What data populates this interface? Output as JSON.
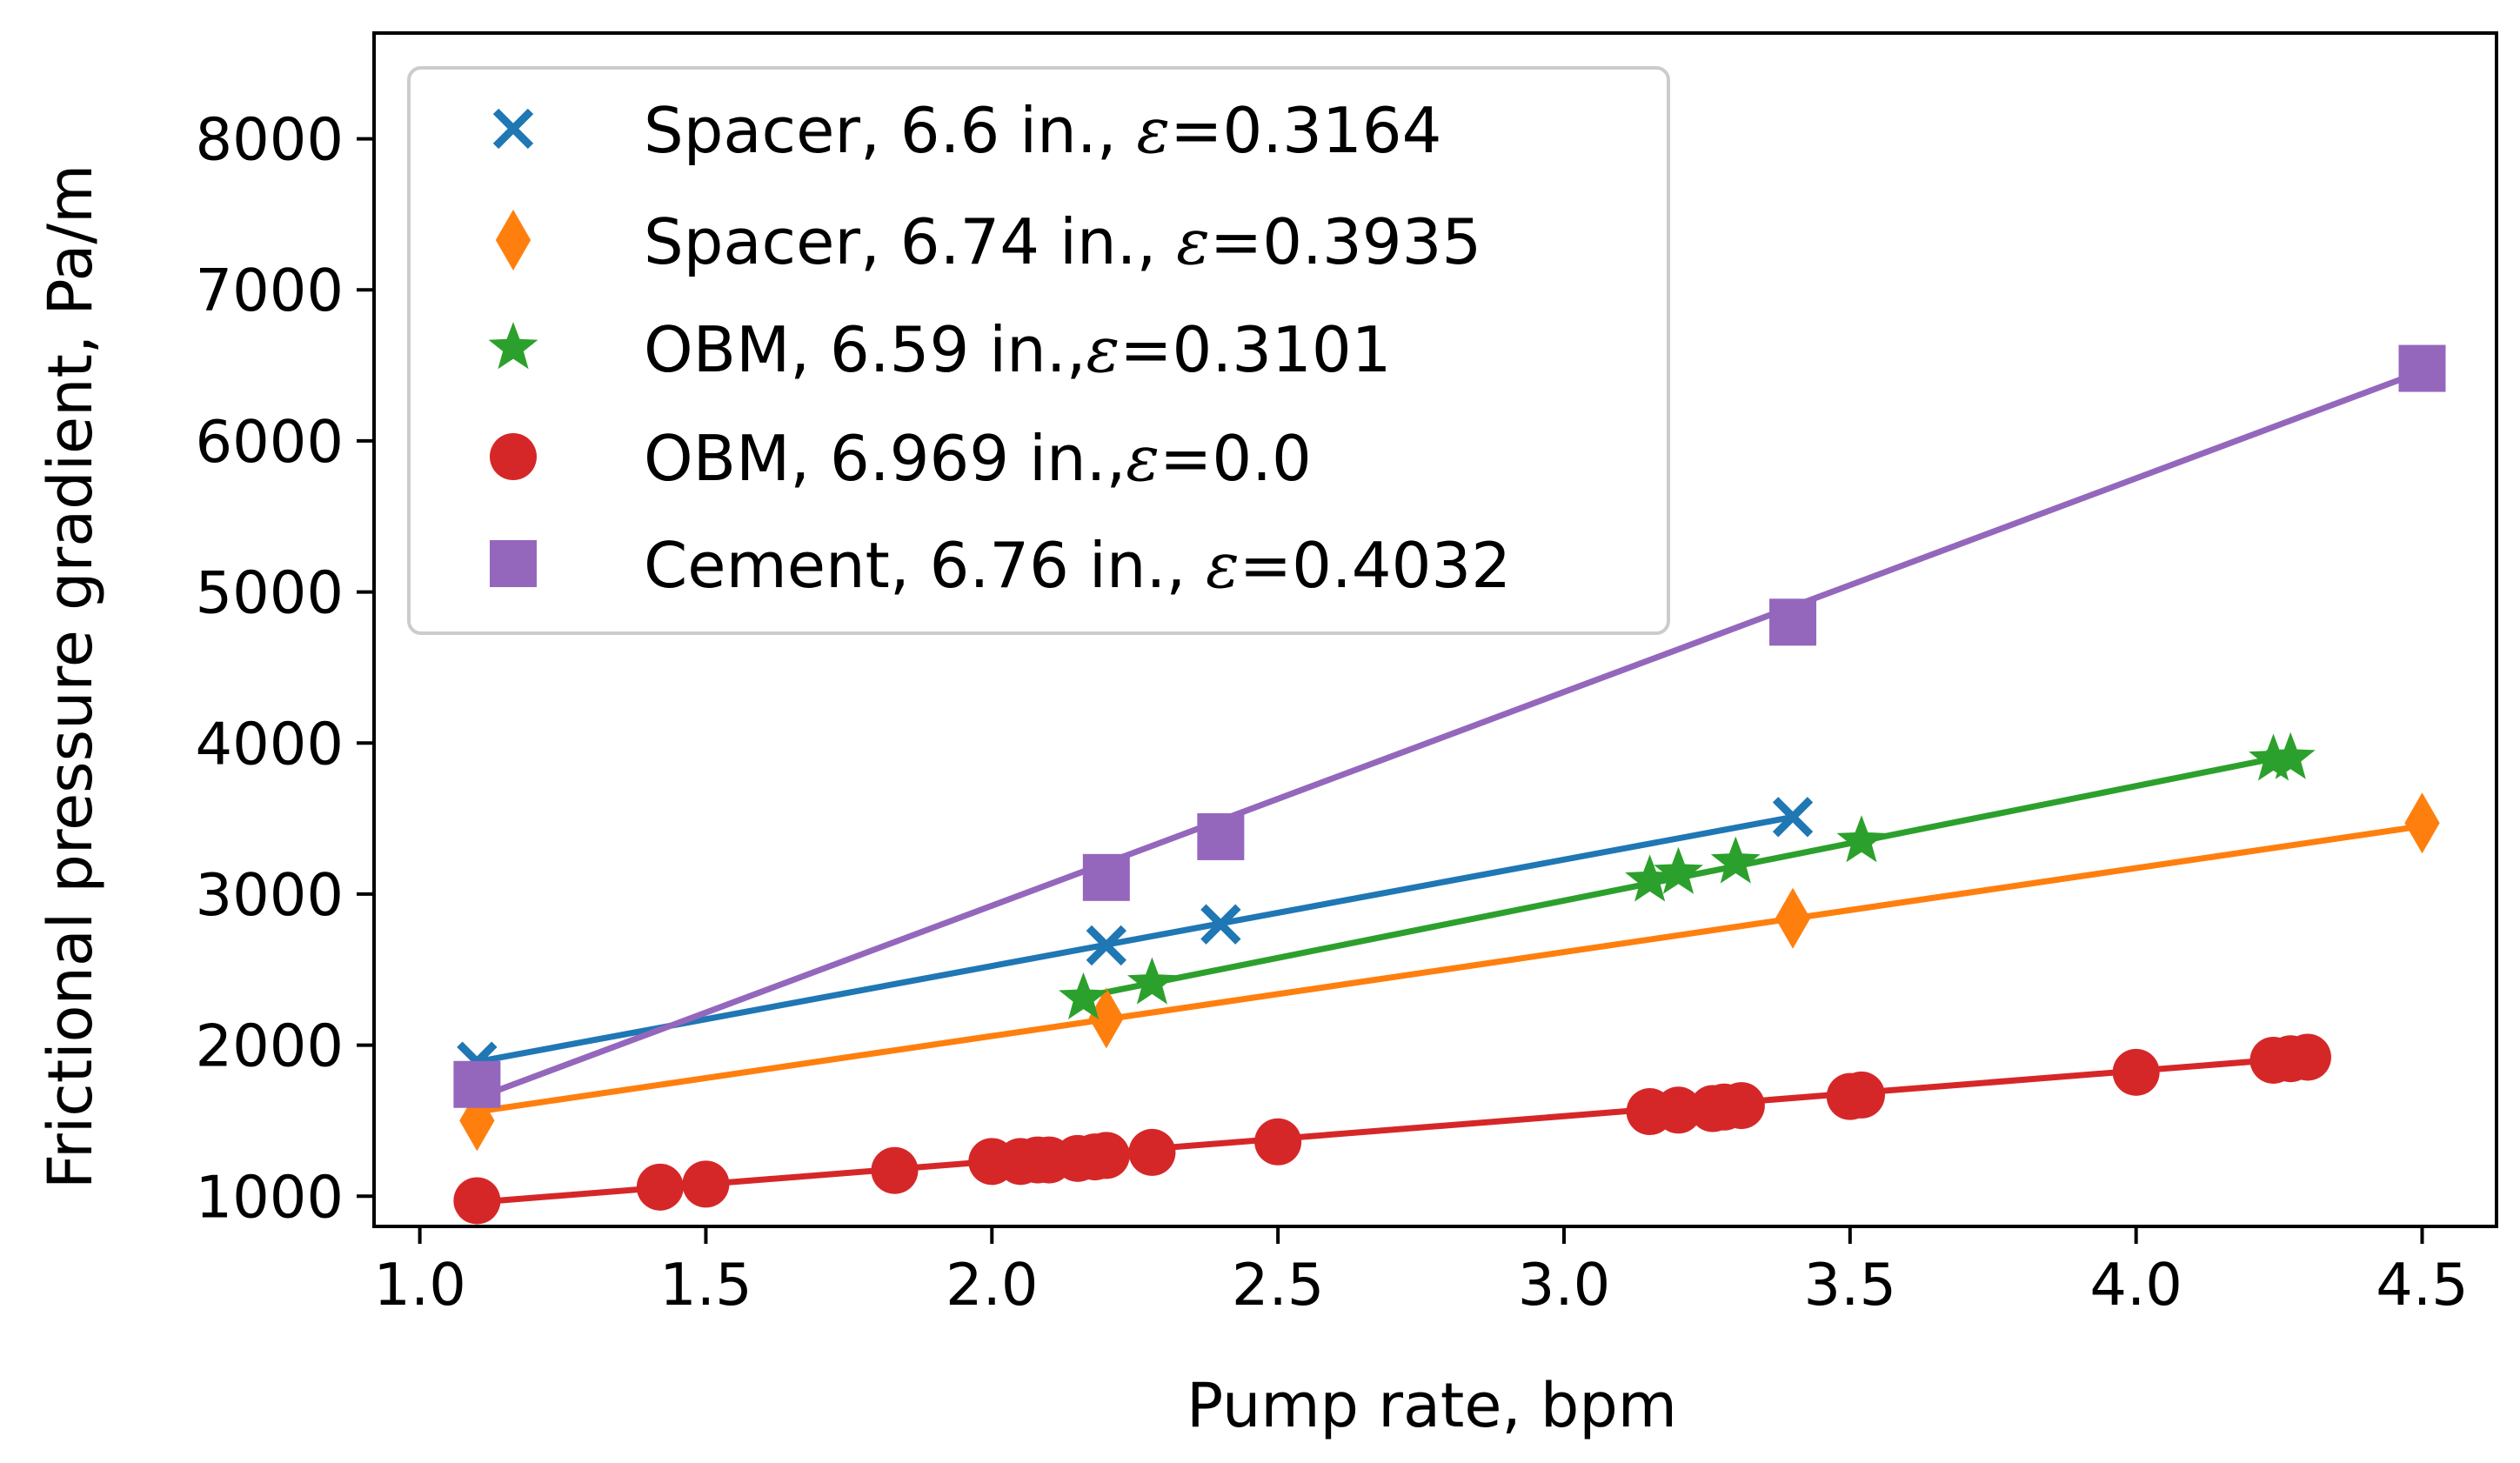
{
  "chart_data": {
    "type": "scatter",
    "title": "",
    "xlabel": "Pump rate, bpm",
    "ylabel": "Frictional pressure gradient, Pa/m",
    "xlim": [
      1.0,
      4.5
    ],
    "ylim": [
      800,
      8700
    ],
    "xticks": [
      1.0,
      1.5,
      2.0,
      2.5,
      3.0,
      3.5,
      4.0,
      4.5
    ],
    "xtick_labels": [
      "1.0",
      "1.5",
      "2.0",
      "2.5",
      "3.0",
      "3.5",
      "4.0",
      "4.5"
    ],
    "yticks": [
      1000,
      2000,
      3000,
      4000,
      5000,
      6000,
      7000,
      8000
    ],
    "ytick_labels": [
      "1000",
      "2000",
      "3000",
      "4000",
      "5000",
      "6000",
      "7000",
      "8000"
    ],
    "legend_position": "top-left",
    "grid": false,
    "series": [
      {
        "id": "spacer-66",
        "name": "Spacer, 6.6 in., ε=0.3164",
        "label_prefix": "Spacer, 6.6 in., ",
        "eps_symbol": "ε",
        "label_suffix": "=0.3164",
        "color": "#1f77b4",
        "marker": "x",
        "points": [
          [
            1.1,
            1890
          ],
          [
            2.2,
            2660
          ],
          [
            2.4,
            2800
          ],
          [
            3.4,
            3510
          ]
        ],
        "fit_line": [
          [
            1.1,
            1890
          ],
          [
            3.4,
            3510
          ]
        ]
      },
      {
        "id": "spacer-674",
        "name": "Spacer, 6.74 in., ε=0.3935",
        "label_prefix": "Spacer, 6.74 in., ",
        "eps_symbol": "ε",
        "label_suffix": "=0.3935",
        "color": "#ff7f0e",
        "marker": "diamond",
        "points": [
          [
            1.1,
            1500
          ],
          [
            2.2,
            2180
          ],
          [
            3.4,
            2840
          ],
          [
            4.5,
            3470
          ]
        ],
        "fit_line": [
          [
            1.1,
            1560
          ],
          [
            4.5,
            3450
          ]
        ]
      },
      {
        "id": "obm-659",
        "name": "OBM, 6.59 in.,ε=0.3101",
        "label_prefix": "OBM, 6.59 in.,",
        "eps_symbol": "ε",
        "label_suffix": "=0.3101",
        "color": "#2ca02c",
        "marker": "star",
        "points": [
          [
            2.16,
            2310
          ],
          [
            2.28,
            2410
          ],
          [
            3.15,
            3090
          ],
          [
            3.2,
            3140
          ],
          [
            3.3,
            3210
          ],
          [
            3.52,
            3350
          ],
          [
            4.24,
            3890
          ],
          [
            4.27,
            3900
          ]
        ],
        "fit_line": [
          [
            2.16,
            2320
          ],
          [
            4.27,
            3920
          ]
        ]
      },
      {
        "id": "obm-6969",
        "name": "OBM, 6.969 in.,ε=0.0",
        "label_prefix": "OBM, 6.969 in.,",
        "eps_symbol": "ε",
        "label_suffix": "=0.0",
        "color": "#d62728",
        "marker": "circle",
        "points": [
          [
            1.1,
            970
          ],
          [
            1.42,
            1060
          ],
          [
            1.5,
            1080
          ],
          [
            1.83,
            1170
          ],
          [
            2.0,
            1230
          ],
          [
            2.05,
            1230
          ],
          [
            2.08,
            1240
          ],
          [
            2.1,
            1240
          ],
          [
            2.15,
            1250
          ],
          [
            2.18,
            1260
          ],
          [
            2.2,
            1270
          ],
          [
            2.28,
            1290
          ],
          [
            2.5,
            1360
          ],
          [
            3.15,
            1560
          ],
          [
            3.2,
            1570
          ],
          [
            3.26,
            1580
          ],
          [
            3.28,
            1590
          ],
          [
            3.31,
            1600
          ],
          [
            3.5,
            1660
          ],
          [
            3.52,
            1670
          ],
          [
            4.0,
            1820
          ],
          [
            4.24,
            1900
          ],
          [
            4.27,
            1910
          ],
          [
            4.3,
            1920
          ]
        ],
        "fit_line": [
          [
            1.1,
            960
          ],
          [
            4.3,
            1920
          ]
        ]
      },
      {
        "id": "cement-676",
        "name": "Cement, 6.76 in., ε=0.4032",
        "label_prefix": "Cement, 6.76 in., ",
        "eps_symbol": "ε",
        "label_suffix": "=0.4032",
        "color": "#9467bd",
        "marker": "square",
        "points": [
          [
            1.1,
            1740
          ],
          [
            2.2,
            3110
          ],
          [
            2.4,
            3380
          ],
          [
            3.4,
            4800
          ],
          [
            4.5,
            6480
          ]
        ],
        "fit_line": [
          [
            1.1,
            1650
          ],
          [
            4.5,
            6460
          ]
        ]
      }
    ]
  }
}
